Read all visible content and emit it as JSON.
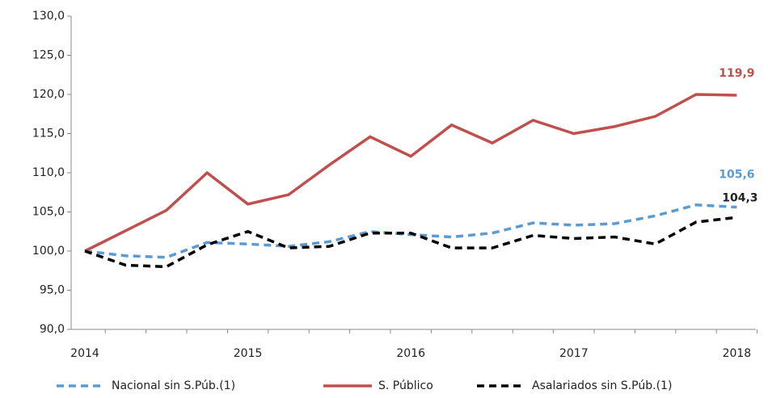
{
  "chart_data": {
    "type": "line",
    "categories": [
      "2014",
      null,
      null,
      null,
      "2015",
      null,
      null,
      null,
      "2016",
      null,
      null,
      null,
      "2017",
      null,
      null,
      null,
      "2018"
    ],
    "series": [
      {
        "name": "Nacional sin S.Púb.(1)",
        "color": "#5b9bd5",
        "dash": true,
        "values": [
          100,
          99.4,
          99.2,
          101.1,
          100.9,
          100.6,
          101.2,
          102.5,
          102.1,
          101.8,
          102.3,
          103.6,
          103.3,
          103.5,
          104.5,
          105.9,
          105.6
        ],
        "value_labels": [
          null,
          null,
          null,
          null,
          null,
          null,
          null,
          null,
          null,
          null,
          null,
          null,
          null,
          null,
          null,
          null,
          "105,6"
        ]
      },
      {
        "name": "S. Público",
        "color": "#c0504d",
        "dash": false,
        "values": [
          100,
          102.6,
          105.2,
          110.0,
          106.0,
          107.2,
          111.0,
          114.6,
          112.1,
          116.1,
          113.8,
          116.7,
          115.0,
          115.9,
          117.2,
          120.0,
          119.9
        ],
        "value_labels": [
          null,
          null,
          null,
          null,
          null,
          null,
          null,
          null,
          null,
          null,
          null,
          null,
          null,
          null,
          null,
          null,
          "119,9"
        ]
      },
      {
        "name": "Asalariados sin S.Púb.(1)",
        "color": "#000000",
        "dash": true,
        "values": [
          100,
          98.2,
          98.0,
          100.8,
          102.5,
          100.4,
          100.6,
          102.3,
          102.3,
          100.4,
          100.4,
          102.0,
          101.6,
          101.8,
          100.9,
          103.7,
          104.3
        ],
        "value_labels": [
          null,
          null,
          null,
          null,
          null,
          null,
          null,
          null,
          null,
          null,
          null,
          null,
          null,
          null,
          null,
          null,
          "104,3"
        ]
      }
    ],
    "ylim": [
      90,
      130
    ],
    "yticks": [
      {
        "value": 90,
        "label": "90,0"
      },
      {
        "value": 95,
        "label": "95,0"
      },
      {
        "value": 100,
        "label": "100,0"
      },
      {
        "value": 105,
        "label": "105,0"
      },
      {
        "value": 110,
        "label": "110,0"
      },
      {
        "value": 115,
        "label": "115,0"
      },
      {
        "value": 120,
        "label": "120,0"
      },
      {
        "value": 125,
        "label": "125,0"
      },
      {
        "value": 130,
        "label": "130,0"
      }
    ],
    "legend": "bottom"
  }
}
